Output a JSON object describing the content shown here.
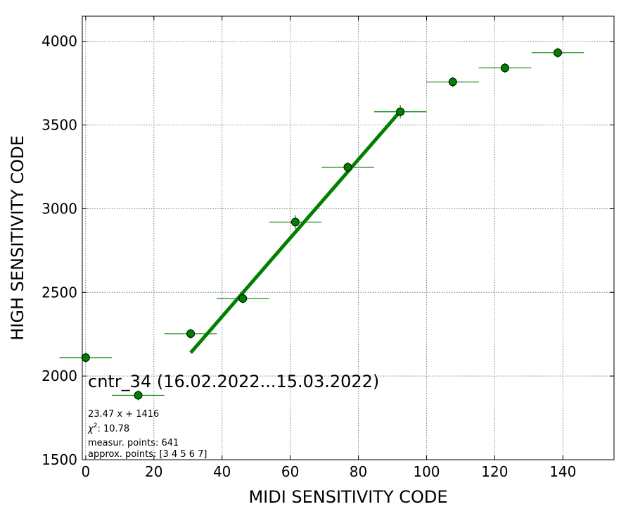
{
  "chart_data": {
    "type": "scatter",
    "title": "",
    "xlabel": "MIDI SENSITIVITY CODE",
    "ylabel": "HIGH SENSITIVITY CODE",
    "xlim": [
      -1,
      155
    ],
    "ylim": [
      1500,
      4150
    ],
    "xticks": [
      0,
      20,
      40,
      60,
      80,
      100,
      120,
      140
    ],
    "yticks": [
      1500,
      2000,
      2500,
      3000,
      3500,
      4000
    ],
    "grid": true,
    "point_color": "#008000",
    "line_color": "#008000",
    "series": [
      {
        "points": [
          {
            "x": 0,
            "y": 2110,
            "xerr": 7.7,
            "yerr": 30
          },
          {
            "x": 15.4,
            "y": 1885,
            "xerr": 7.7,
            "yerr": 30
          },
          {
            "x": 30.8,
            "y": 2253,
            "xerr": 7.7,
            "yerr": 30
          },
          {
            "x": 46.1,
            "y": 2463,
            "xerr": 7.7,
            "yerr": 30
          },
          {
            "x": 61.5,
            "y": 2920,
            "xerr": 7.7,
            "yerr": 40
          },
          {
            "x": 76.9,
            "y": 3248,
            "xerr": 7.7,
            "yerr": 30
          },
          {
            "x": 92.3,
            "y": 3579,
            "xerr": 7.7,
            "yerr": 40
          },
          {
            "x": 107.7,
            "y": 3757,
            "xerr": 7.7,
            "yerr": 30
          },
          {
            "x": 123.0,
            "y": 3841,
            "xerr": 7.7,
            "yerr": 30
          },
          {
            "x": 138.5,
            "y": 3932,
            "xerr": 7.7,
            "yerr": 30
          }
        ]
      }
    ],
    "fit": {
      "slope": 23.47,
      "intercept": 1416,
      "x_range": [
        30.8,
        92.3
      ]
    },
    "annotations": {
      "header": "cntr_34 (16.02.2022...15.03.2022)",
      "equation": "23.47 x + 1416",
      "chi2_symbol": "χ",
      "chi2_power": "2",
      "chi2_rest": ": 10.78",
      "measur": "measur. points: 641",
      "approx": "approx. points: [3 4 5 6 7]"
    }
  }
}
